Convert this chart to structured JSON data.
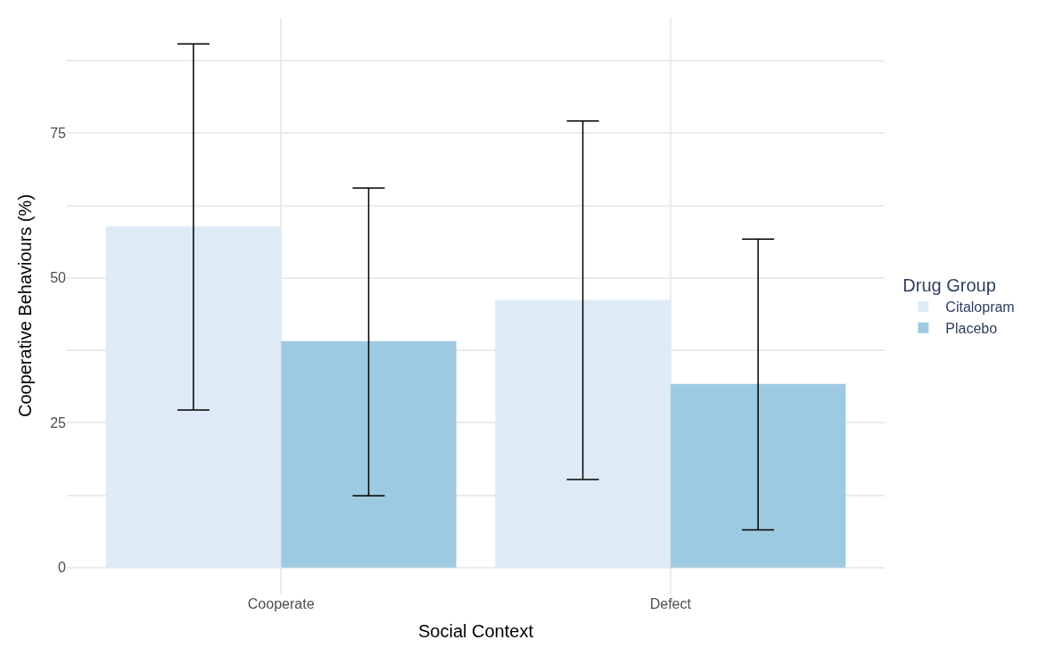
{
  "chart_data": {
    "type": "bar",
    "xlabel": "Social Context",
    "ylabel": "Cooperative Behaviours (%)",
    "legend_title": "Drug Group",
    "categories": [
      "Cooperate",
      "Defect"
    ],
    "series": [
      {
        "name": "Citalopram",
        "color": "#deebf7",
        "values": [
          58.9,
          46.2
        ],
        "errors": [
          [
            27.2,
            90.4
          ],
          [
            15.2,
            77.1
          ]
        ]
      },
      {
        "name": "Placebo",
        "color": "#9ecae1",
        "values": [
          39.1,
          31.7
        ],
        "errors": [
          [
            12.4,
            65.5
          ],
          [
            6.5,
            56.7
          ]
        ]
      }
    ],
    "ylim": [
      -4.5,
      94.9
    ],
    "yticks": [
      0,
      {
        "value": 12.5,
        "label": null
      },
      25,
      {
        "value": 37.5,
        "label": null
      },
      50,
      {
        "value": 62.5,
        "label": null
      },
      75,
      {
        "value": 87.5,
        "label": null
      }
    ],
    "grid": true,
    "legend": "right"
  }
}
